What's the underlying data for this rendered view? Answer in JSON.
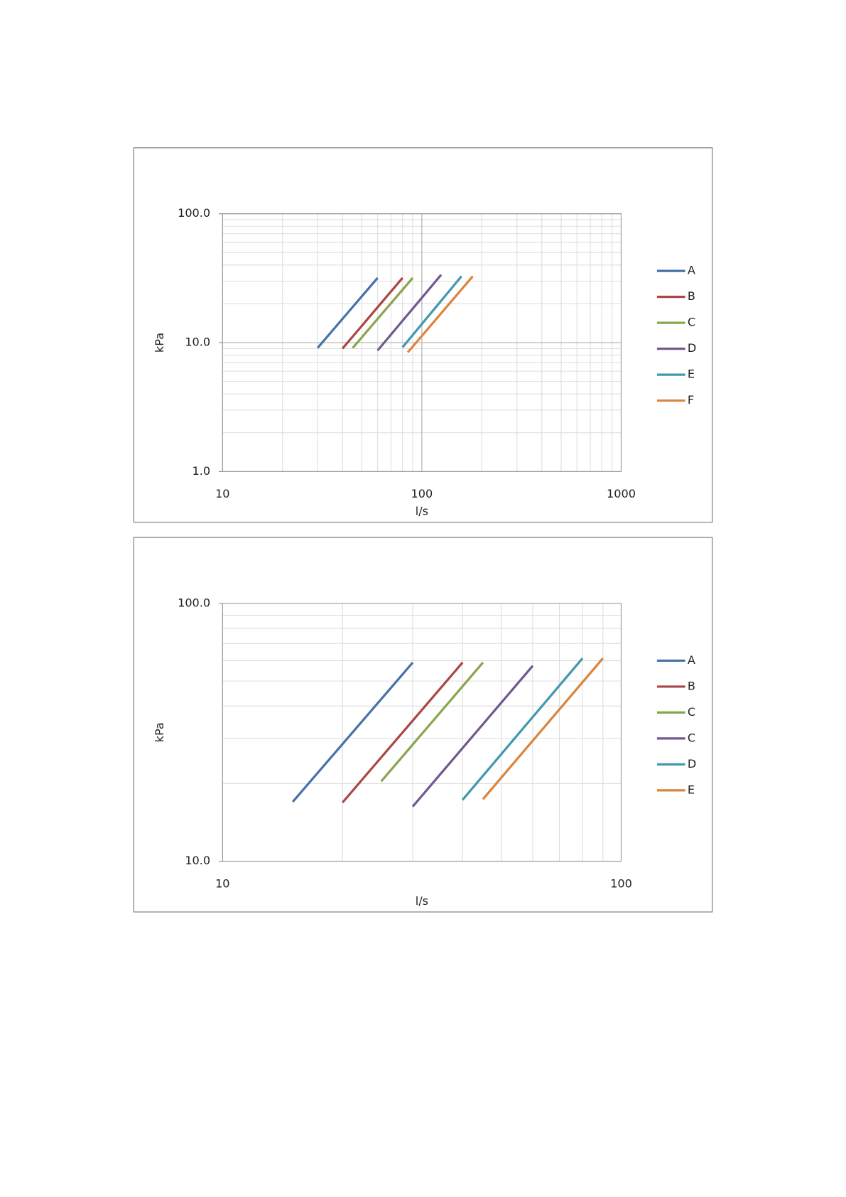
{
  "chart_data": [
    {
      "type": "line",
      "x_label": "l/s",
      "y_label": "kPa",
      "xlog": true,
      "ylog": true,
      "grid": true,
      "minor_grid": true,
      "legend": "right",
      "xlim": [
        10,
        1000
      ],
      "xticks": [
        10,
        100,
        1000
      ],
      "ylim": [
        1,
        100
      ],
      "yticks": [
        {
          "value": 1,
          "label": "1.0"
        },
        {
          "value": 10,
          "label": "10.0"
        },
        {
          "value": 100,
          "label": "100.0"
        }
      ],
      "series": [
        {
          "name": "A",
          "color": "#4572a7",
          "x": [
            30,
            60
          ],
          "values": [
            9.1,
            31.8
          ]
        },
        {
          "name": "B",
          "color": "#aa4643",
          "x": [
            40,
            80
          ],
          "values": [
            9.0,
            31.8
          ]
        },
        {
          "name": "C",
          "color": "#89a54e",
          "x": [
            45,
            90
          ],
          "values": [
            9.1,
            31.8
          ]
        },
        {
          "name": "D",
          "color": "#71588f",
          "x": [
            60,
            125
          ],
          "values": [
            8.7,
            33.6
          ]
        },
        {
          "name": "E",
          "color": "#4198af",
          "x": [
            80,
            158
          ],
          "values": [
            9.2,
            32.7
          ]
        },
        {
          "name": "F",
          "color": "#db843d",
          "x": [
            85,
            180
          ],
          "values": [
            8.4,
            32.7
          ]
        }
      ]
    },
    {
      "type": "line",
      "x_label": "l/s",
      "y_label": "kPa",
      "xlog": true,
      "ylog": true,
      "grid": true,
      "minor_grid": true,
      "legend": "right",
      "xlim": [
        10,
        100
      ],
      "xticks": [
        10,
        100
      ],
      "ylim": [
        10,
        100
      ],
      "yticks": [
        {
          "value": 10,
          "label": "10.0"
        },
        {
          "value": 100,
          "label": "100.0"
        }
      ],
      "series": [
        {
          "name": "A",
          "color": "#4572a7",
          "x": [
            15,
            30
          ],
          "values": [
            17.0,
            59
          ]
        },
        {
          "name": "B",
          "color": "#aa4643",
          "x": [
            20,
            40
          ],
          "values": [
            16.9,
            59
          ]
        },
        {
          "name": "C",
          "color": "#89a54e",
          "x": [
            25,
            45
          ],
          "values": [
            20.4,
            59
          ]
        },
        {
          "name": "C",
          "color": "#71588f",
          "x": [
            30,
            60
          ],
          "values": [
            16.3,
            57.3
          ]
        },
        {
          "name": "D",
          "color": "#4198af",
          "x": [
            40,
            80
          ],
          "values": [
            17.3,
            61.3
          ]
        },
        {
          "name": "E",
          "color": "#db843d",
          "x": [
            45,
            90
          ],
          "values": [
            17.4,
            61.3
          ]
        }
      ]
    }
  ]
}
